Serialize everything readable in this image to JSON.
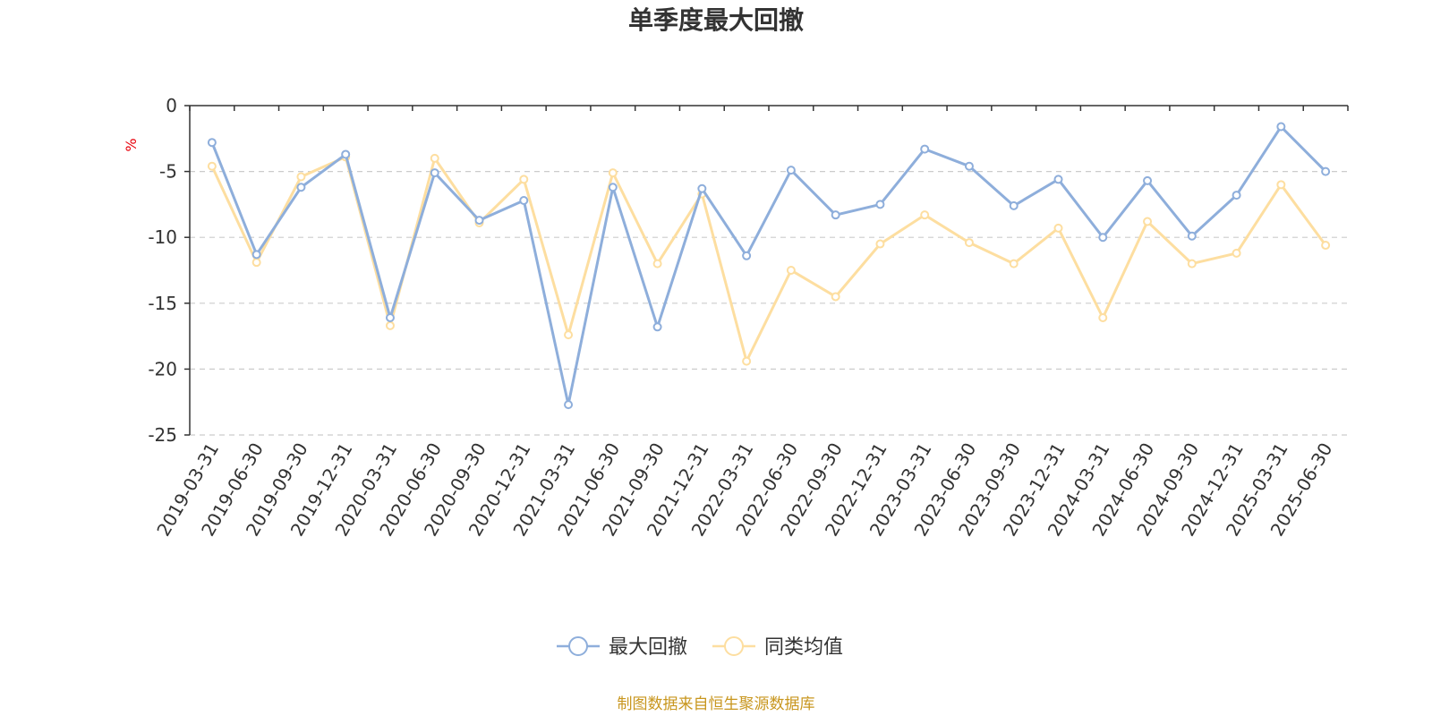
{
  "chart_data": {
    "type": "line",
    "title": "单季度最大回撤",
    "ylabel": "%",
    "ylim": [
      -25,
      0
    ],
    "yticks": [
      0,
      -5,
      -10,
      -15,
      -20,
      -25
    ],
    "grid": true,
    "legend_position": "bottom-center",
    "x": [
      "2019-03-31",
      "2019-06-30",
      "2019-09-30",
      "2019-12-31",
      "2020-03-31",
      "2020-06-30",
      "2020-09-30",
      "2020-12-31",
      "2021-03-31",
      "2021-06-30",
      "2021-09-30",
      "2021-12-31",
      "2022-03-31",
      "2022-06-30",
      "2022-09-30",
      "2022-12-31",
      "2023-03-31",
      "2023-06-30",
      "2023-09-30",
      "2023-12-31",
      "2024-03-31",
      "2024-06-30",
      "2024-09-30",
      "2024-12-31",
      "2025-03-31",
      "2025-06-30"
    ],
    "series": [
      {
        "name": "最大回撤",
        "color": "#8eaedb",
        "values": [
          -2.8,
          -11.3,
          -6.2,
          -3.7,
          -16.1,
          -5.1,
          -8.7,
          -7.2,
          -22.7,
          -6.2,
          -16.8,
          -6.3,
          -11.4,
          -4.9,
          -8.3,
          -7.5,
          -3.3,
          -4.6,
          -7.6,
          -5.6,
          -10.0,
          -5.7,
          -9.9,
          -6.8,
          -1.6,
          -5.0
        ]
      },
      {
        "name": "同类均值",
        "color": "#fddea0",
        "values": [
          -4.6,
          -11.9,
          -5.4,
          -3.9,
          -16.7,
          -4.0,
          -8.9,
          -5.6,
          -17.4,
          -5.1,
          -12.0,
          -6.7,
          -19.4,
          -12.5,
          -14.5,
          -10.5,
          -8.3,
          -10.4,
          -12.0,
          -9.3,
          -16.1,
          -8.8,
          -12.0,
          -11.2,
          -6.0,
          -10.6
        ]
      }
    ]
  },
  "source_text": "制图数据来自恒生聚源数据库",
  "colors": {
    "axis": "#333333",
    "grid": "#cccccc",
    "unit": "#e8000b",
    "source": "#c8961e"
  }
}
